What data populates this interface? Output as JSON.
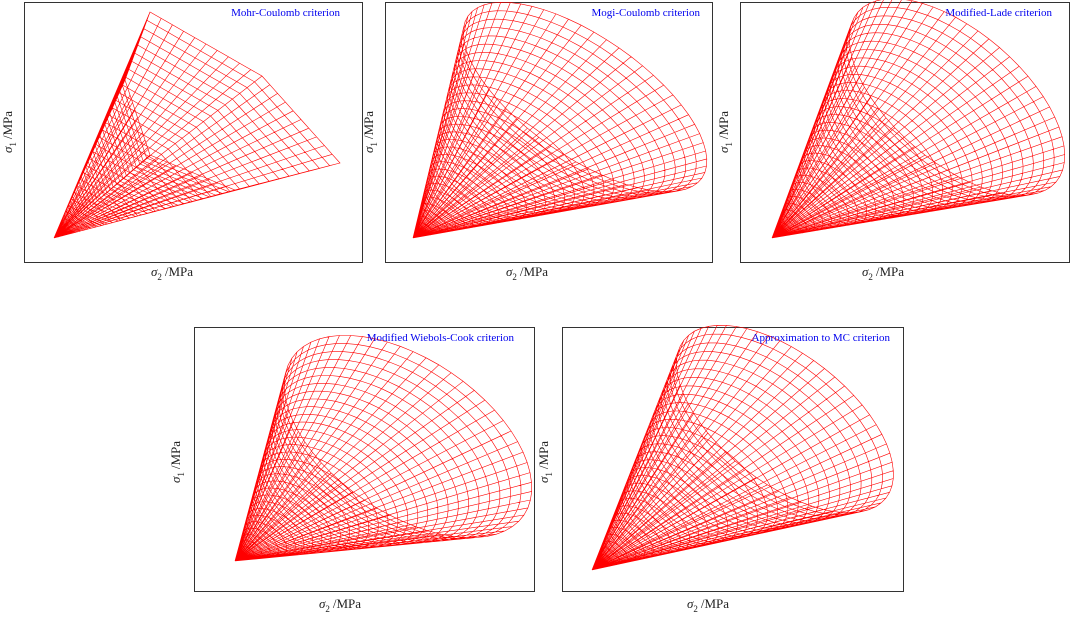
{
  "panels": [
    {
      "title": "Mohr-Coulomb criterion",
      "x_label": {
        "symbol": "σ",
        "subscript": "2",
        "unit": "/MPa"
      },
      "y_label": {
        "symbol": "σ",
        "subscript": "1",
        "unit": "/MPa"
      }
    },
    {
      "title": "Mogi-Coulomb criterion",
      "x_label": {
        "symbol": "σ",
        "subscript": "2",
        "unit": "/MPa"
      },
      "y_label": {
        "symbol": "σ",
        "subscript": "1",
        "unit": "/MPa"
      }
    },
    {
      "title": "Modified-Lade criterion",
      "x_label": {
        "symbol": "σ",
        "subscript": "2",
        "unit": "/MPa"
      },
      "y_label": {
        "symbol": "σ",
        "subscript": "1",
        "unit": "/MPa"
      }
    },
    {
      "title": "Modified Wiebols-Cook criterion",
      "x_label": {
        "symbol": "σ",
        "subscript": "2",
        "unit": "/MPa"
      },
      "y_label": {
        "symbol": "σ",
        "subscript": "1",
        "unit": "/MPa"
      }
    },
    {
      "title": "Approximation to MC criterion",
      "x_label": {
        "symbol": "σ",
        "subscript": "2",
        "unit": "/MPa"
      },
      "y_label": {
        "symbol": "σ",
        "subscript": "1",
        "unit": "/MPa"
      }
    }
  ]
}
